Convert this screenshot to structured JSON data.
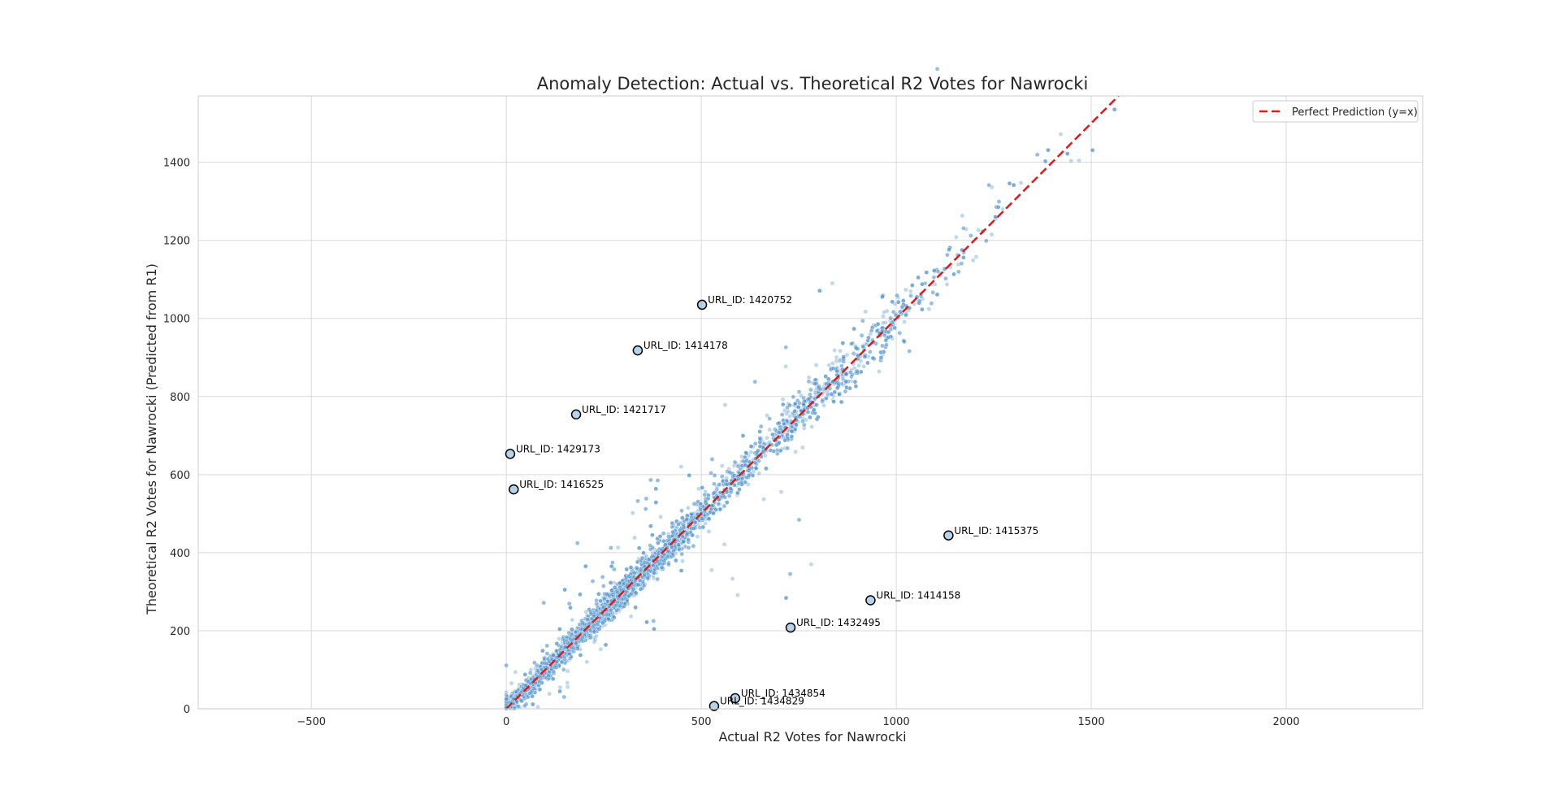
{
  "chart_data": {
    "type": "scatter",
    "title": "Anomaly Detection: Actual vs. Theoretical R2 Votes for Nawrocki",
    "xlabel": "Actual R2 Votes for Nawrocki",
    "ylabel": "Theoretical R2 Votes for Nawrocki (Predicted from R1)",
    "xlim": [
      -790,
      2350
    ],
    "ylim": [
      0,
      1570
    ],
    "x_ticks": [
      -500,
      0,
      500,
      1000,
      1500,
      2000
    ],
    "x_tick_labels": [
      "−500",
      "0",
      "500",
      "1000",
      "1500",
      "2000"
    ],
    "y_ticks": [
      0,
      200,
      400,
      600,
      800,
      1000,
      1200,
      1400
    ],
    "y_tick_labels": [
      "0",
      "200",
      "400",
      "600",
      "800",
      "1000",
      "1200",
      "1400"
    ],
    "grid": true,
    "legend_position": "top-right",
    "reference_line": {
      "label": "Perfect Prediction (y=x)",
      "color": "#e8161b",
      "style": "dashed",
      "from": [
        0,
        0
      ],
      "to": [
        1570,
        1570
      ]
    },
    "point_color": "#4a90c8",
    "highlight_color": "#000000",
    "main_cloud": {
      "description_note": "dense cluster along y=x",
      "x_range": [
        0,
        1570
      ]
    },
    "outliers": [
      {
        "label": "URL_ID: 1420752",
        "x": 502,
        "y": 1035
      },
      {
        "label": "URL_ID: 1414178",
        "x": 337,
        "y": 918
      },
      {
        "label": "URL_ID: 1421717",
        "x": 179,
        "y": 754
      },
      {
        "label": "URL_ID: 1429173",
        "x": 10,
        "y": 653
      },
      {
        "label": "URL_ID: 1416525",
        "x": 19,
        "y": 562
      },
      {
        "label": "URL_ID: 1415375",
        "x": 1134,
        "y": 444
      },
      {
        "label": "URL_ID: 1414158",
        "x": 934,
        "y": 278
      },
      {
        "label": "URL_ID: 1432495",
        "x": 729,
        "y": 208
      },
      {
        "label": "URL_ID: 1434854",
        "x": 587,
        "y": 27
      },
      {
        "label": "URL_ID: 1434829",
        "x": 533,
        "y": 7
      }
    ]
  }
}
